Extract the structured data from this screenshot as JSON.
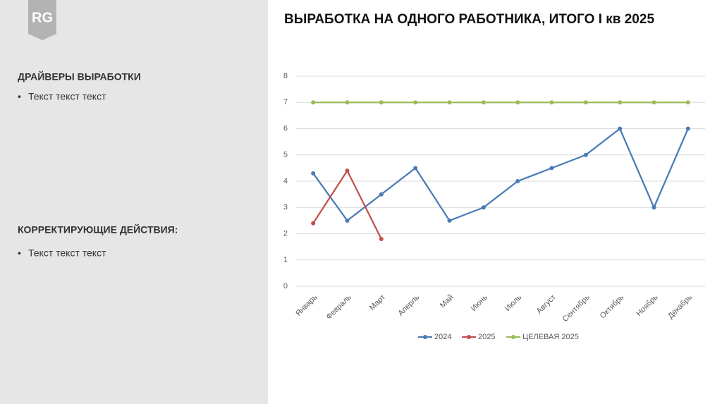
{
  "logo": "RG",
  "sidebar": {
    "sections": [
      {
        "heading": "ДРАЙВЕРЫ ВЫРАБОТКИ",
        "bullets": [
          "Текст текст текст"
        ]
      },
      {
        "heading": "КОРРЕКТИРУЮЩИЕ ДЕЙСТВИЯ:",
        "bullets": [
          "Текст текст текст"
        ]
      }
    ]
  },
  "chart_data": {
    "type": "line",
    "title": "ВЫРАБОТКА НА ОДНОГО РАБОТНИКА, ИТОГО I кв 2025",
    "categories": [
      "Январь",
      "Февраль",
      "Март",
      "Аперль",
      "Май",
      "Июнь",
      "Июль",
      "Август",
      "Сентябрь",
      "Октябрь",
      "Ноябрь",
      "Декабрь"
    ],
    "series": [
      {
        "name": "2024",
        "color": "#4a7ab5",
        "values": [
          4.3,
          2.5,
          3.5,
          4.5,
          2.5,
          3,
          4,
          4.5,
          5,
          6,
          3,
          6
        ]
      },
      {
        "name": "2025",
        "color": "#c0504d",
        "values": [
          2.4,
          4.4,
          1.8,
          null,
          null,
          null,
          null,
          null,
          null,
          null,
          null,
          null
        ]
      },
      {
        "name": "ЦЕЛЕВАЯ 2025",
        "color": "#9bbb59",
        "values": [
          7,
          7,
          7,
          7,
          7,
          7,
          7,
          7,
          7,
          7,
          7,
          7
        ]
      }
    ],
    "ylim": [
      0,
      8
    ],
    "yticks": [
      0,
      1,
      2,
      3,
      4,
      5,
      6,
      7,
      8
    ],
    "grid": true,
    "legend": "bottom"
  }
}
